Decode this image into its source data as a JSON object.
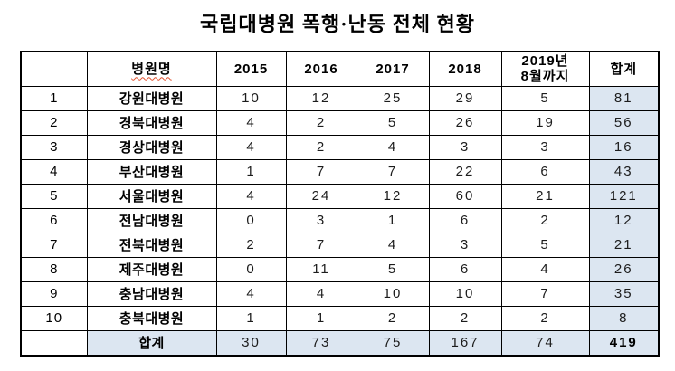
{
  "page": {
    "title": "국립대병원 폭행·난동 전체 현황"
  },
  "table": {
    "headers": [
      "",
      "병원명",
      "2015",
      "2016",
      "2017",
      "2018",
      "2019년\n8월까지",
      "합계"
    ],
    "rows": [
      {
        "no": "1",
        "name": "강원대병원",
        "values": [
          "10",
          "12",
          "25",
          "29",
          "5"
        ],
        "total": "81"
      },
      {
        "no": "2",
        "name": "경북대병원",
        "values": [
          "4",
          "2",
          "5",
          "26",
          "19"
        ],
        "total": "56"
      },
      {
        "no": "3",
        "name": "경상대병원",
        "values": [
          "4",
          "2",
          "4",
          "3",
          "3"
        ],
        "total": "16"
      },
      {
        "no": "4",
        "name": "부산대병원",
        "values": [
          "1",
          "7",
          "7",
          "22",
          "6"
        ],
        "total": "43"
      },
      {
        "no": "5",
        "name": "서울대병원",
        "values": [
          "4",
          "24",
          "12",
          "60",
          "21"
        ],
        "total": "121"
      },
      {
        "no": "6",
        "name": "전남대병원",
        "values": [
          "0",
          "3",
          "1",
          "6",
          "2"
        ],
        "total": "12"
      },
      {
        "no": "7",
        "name": "전북대병원",
        "values": [
          "2",
          "7",
          "4",
          "3",
          "5"
        ],
        "total": "21"
      },
      {
        "no": "8",
        "name": "제주대병원",
        "values": [
          "0",
          "11",
          "5",
          "6",
          "4"
        ],
        "total": "26"
      },
      {
        "no": "9",
        "name": "충남대병원",
        "values": [
          "4",
          "4",
          "10",
          "10",
          "7"
        ],
        "total": "35"
      },
      {
        "no": "10",
        "name": "충북대병원",
        "values": [
          "1",
          "1",
          "2",
          "2",
          "2"
        ],
        "total": "8"
      }
    ],
    "footer": {
      "no": "",
      "label": "합계",
      "values": [
        "30",
        "73",
        "75",
        "167",
        "74"
      ],
      "total": "419"
    }
  },
  "colors": {
    "highlight_bg": "#dce6f1",
    "border": "#000000",
    "spellcheck_underline": "#e2512e"
  }
}
